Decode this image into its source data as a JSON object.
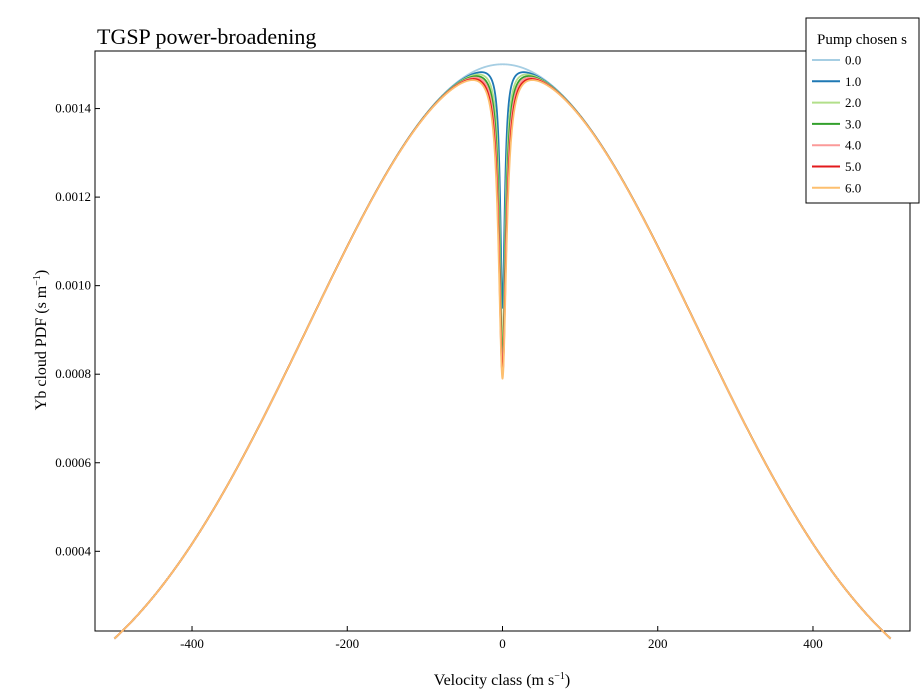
{
  "chart_data": {
    "type": "line",
    "title": "TGSP power-broadening",
    "xlabel": "Velocity class (m s",
    "xlabel_sup": "−1",
    "xlabel_end": ")",
    "ylabel": "Yb cloud PDF (s m",
    "ylabel_sup": "−1",
    "ylabel_end": ")",
    "xlim": [
      -525,
      525
    ],
    "ylim": [
      0.00022,
      0.00153
    ],
    "xticks": [
      -400,
      -200,
      0,
      200,
      400
    ],
    "xtick_labels": [
      "-400",
      "-200",
      "0",
      "200",
      "400"
    ],
    "yticks": [
      0.0004,
      0.0006,
      0.0008,
      0.001,
      0.0012,
      0.0014
    ],
    "ytick_labels": [
      "0.0004",
      "0.0006",
      "0.0008",
      "0.0010",
      "0.0012",
      "0.0014"
    ],
    "x_range": [
      -500,
      500
    ],
    "profile": {
      "peak": 0.0015,
      "sigma": 250
    },
    "legend": {
      "title": "Pump chosen s",
      "position": "top-right"
    },
    "grid": false,
    "series": [
      {
        "name": "0.0",
        "s": 0.0,
        "color": "#a6cee3",
        "dip_depth": 0.0,
        "dip_width": 3.0
      },
      {
        "name": "1.0",
        "s": 1.0,
        "color": "#1f78b4",
        "dip_depth": 0.00055,
        "dip_width": 3.5
      },
      {
        "name": "2.0",
        "s": 2.0,
        "color": "#b2df8a",
        "dip_depth": 0.00064,
        "dip_width": 4.2
      },
      {
        "name": "3.0",
        "s": 3.0,
        "color": "#33a02c",
        "dip_depth": 0.00067,
        "dip_width": 4.8
      },
      {
        "name": "4.0",
        "s": 4.0,
        "color": "#fb9a99",
        "dip_depth": 0.00069,
        "dip_width": 5.3
      },
      {
        "name": "5.0",
        "s": 5.0,
        "color": "#e31a1c",
        "dip_depth": 0.0007,
        "dip_width": 5.8
      },
      {
        "name": "6.0",
        "s": 6.0,
        "color": "#fdbf6f",
        "dip_depth": 0.00071,
        "dip_width": 6.2
      }
    ]
  }
}
